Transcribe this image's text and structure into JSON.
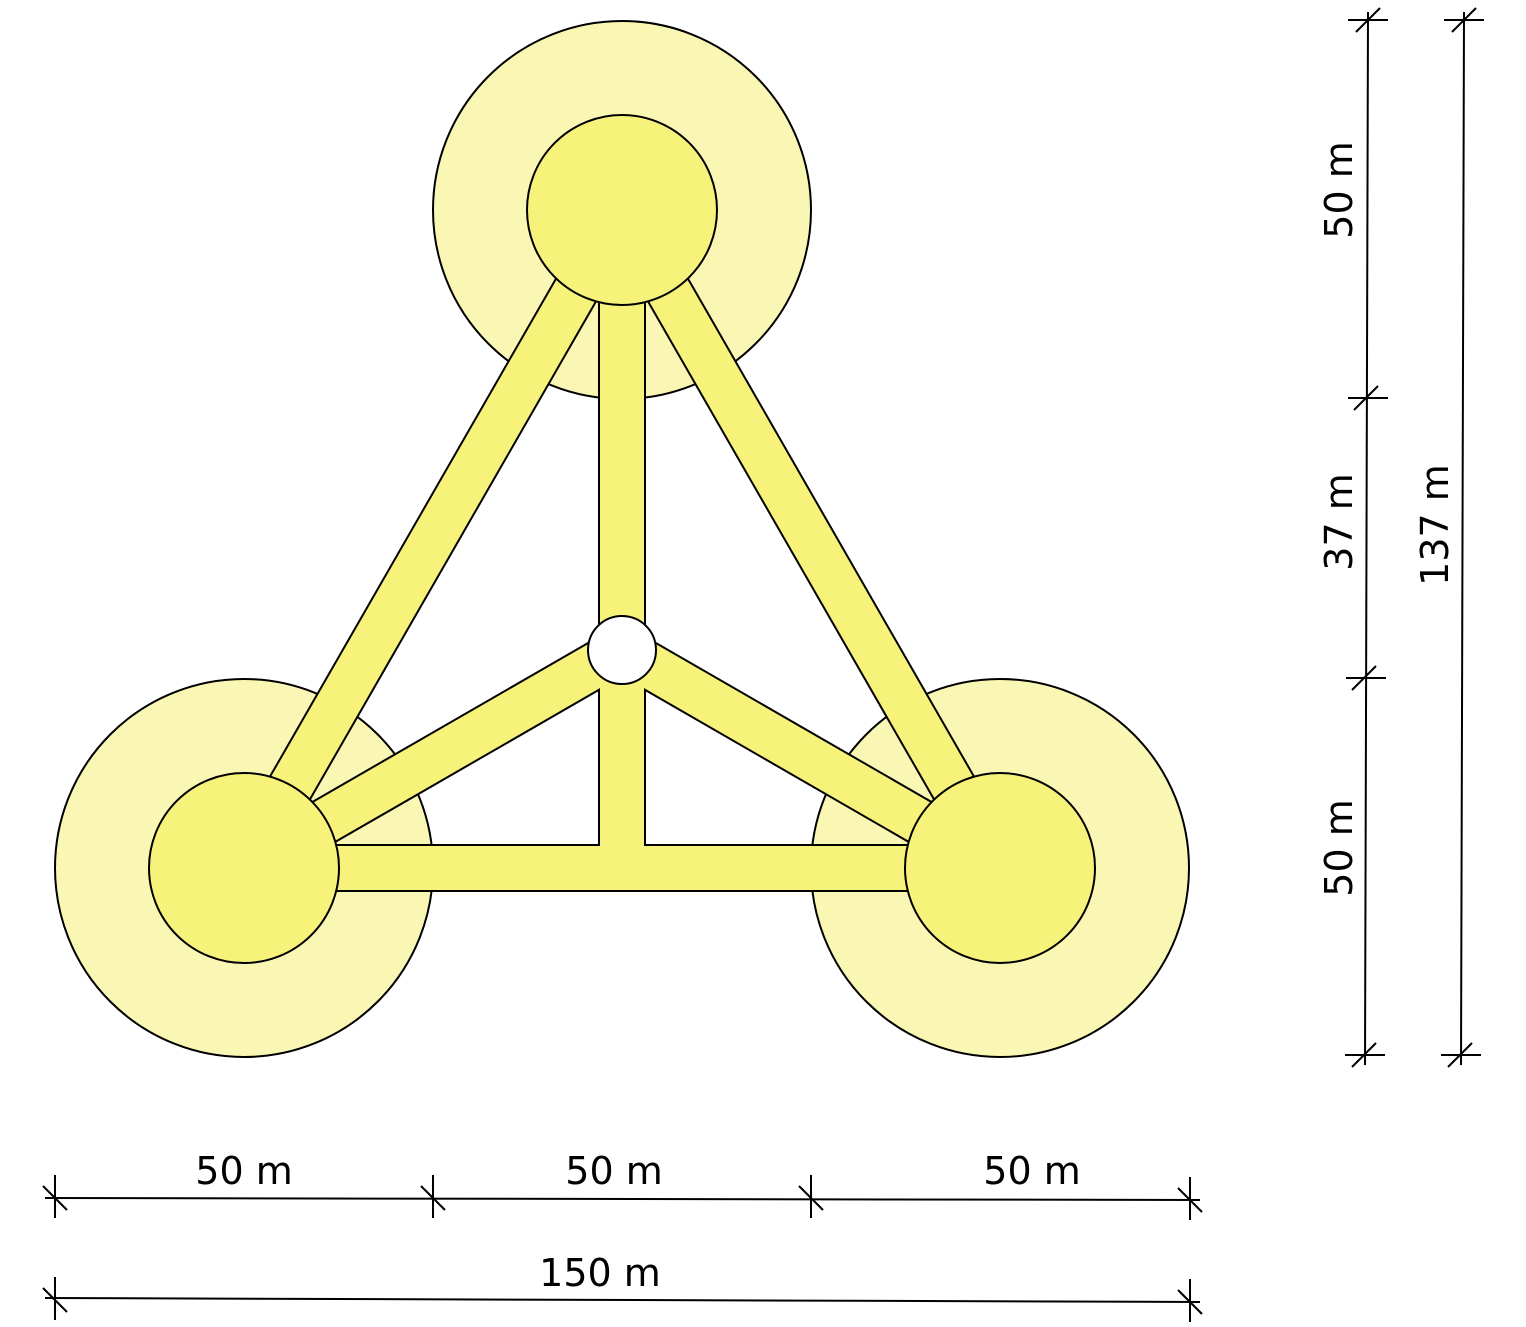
{
  "dimensions": {
    "horizontal": [
      "50 m",
      "50 m",
      "50 m"
    ],
    "horizontal_total": "150 m",
    "vertical": [
      "50 m",
      "37 m",
      "50 m"
    ],
    "vertical_total": "137 m"
  }
}
